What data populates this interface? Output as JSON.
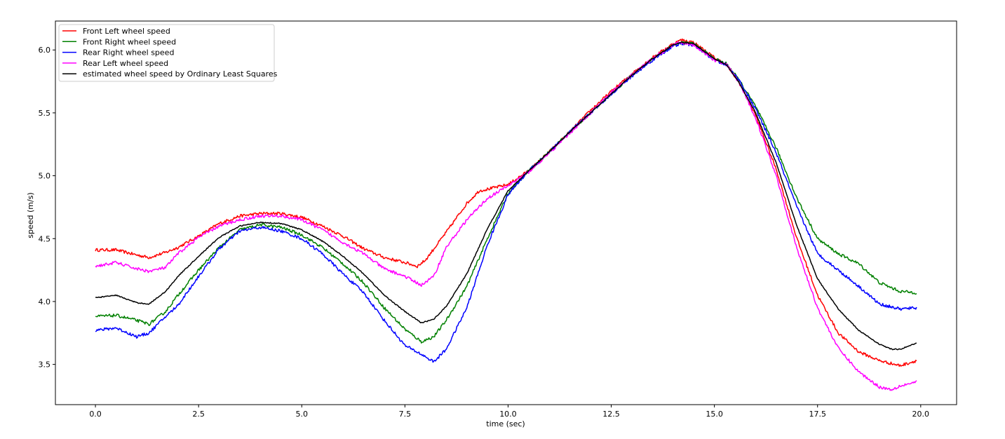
{
  "chart_data": {
    "type": "line",
    "title": "",
    "xlabel": "time (sec)",
    "ylabel": "speed (m/s)",
    "xlim": [
      -0.97,
      20.87
    ],
    "ylim": [
      3.18,
      6.23
    ],
    "xticks": [
      0.0,
      2.5,
      5.0,
      7.5,
      10.0,
      12.5,
      15.0,
      17.5,
      20.0
    ],
    "xtick_labels": [
      "0.0",
      "2.5",
      "5.0",
      "7.5",
      "10.0",
      "12.5",
      "15.0",
      "17.5",
      "20.0"
    ],
    "yticks": [
      3.5,
      4.0,
      4.5,
      5.0,
      5.5,
      6.0
    ],
    "ytick_labels": [
      "3.5",
      "4.0",
      "4.5",
      "5.0",
      "5.5",
      "6.0"
    ],
    "grid": false,
    "legend_position": "upper-left",
    "series": [
      {
        "name": "Front Left wheel speed",
        "color": "#ff0000",
        "noise": 0.012,
        "x": [
          0,
          0.5,
          1.0,
          1.3,
          1.7,
          2.0,
          2.5,
          3.0,
          3.5,
          4.0,
          4.5,
          5.0,
          5.5,
          6.0,
          6.5,
          7.0,
          7.5,
          7.8,
          8.0,
          8.5,
          9.0,
          9.3,
          9.6,
          10.0,
          10.5,
          11.0,
          11.5,
          12.0,
          12.5,
          13.0,
          13.5,
          14.0,
          14.2,
          14.5,
          15.0,
          15.3,
          15.6,
          16.0,
          16.5,
          17.0,
          17.5,
          18.0,
          18.5,
          19.0,
          19.5,
          19.9
        ],
        "y": [
          4.41,
          4.41,
          4.37,
          4.35,
          4.39,
          4.43,
          4.52,
          4.62,
          4.68,
          4.7,
          4.7,
          4.67,
          4.6,
          4.52,
          4.42,
          4.35,
          4.31,
          4.28,
          4.33,
          4.55,
          4.78,
          4.88,
          4.9,
          4.93,
          5.04,
          5.19,
          5.35,
          5.52,
          5.67,
          5.81,
          5.94,
          6.05,
          6.08,
          6.06,
          5.94,
          5.88,
          5.74,
          5.48,
          5.05,
          4.5,
          4.05,
          3.75,
          3.6,
          3.53,
          3.49,
          3.53
        ]
      },
      {
        "name": "Front Right wheel speed",
        "color": "#008000",
        "noise": 0.012,
        "x": [
          0,
          0.5,
          1.0,
          1.3,
          1.7,
          2.0,
          2.5,
          3.0,
          3.5,
          4.0,
          4.5,
          5.0,
          5.5,
          6.0,
          6.5,
          7.0,
          7.5,
          7.9,
          8.2,
          8.5,
          9.0,
          9.5,
          10.0,
          10.5,
          11.0,
          11.5,
          12.0,
          12.5,
          13.0,
          13.5,
          14.0,
          14.2,
          14.5,
          15.0,
          15.3,
          15.6,
          16.0,
          16.5,
          17.0,
          17.5,
          18.0,
          18.5,
          19.0,
          19.5,
          19.9
        ],
        "y": [
          3.88,
          3.89,
          3.85,
          3.82,
          3.92,
          4.05,
          4.25,
          4.43,
          4.57,
          4.61,
          4.59,
          4.53,
          4.43,
          4.3,
          4.15,
          3.95,
          3.78,
          3.68,
          3.72,
          3.85,
          4.12,
          4.5,
          4.86,
          5.04,
          5.19,
          5.35,
          5.5,
          5.65,
          5.8,
          5.93,
          6.04,
          6.06,
          6.05,
          5.93,
          5.89,
          5.76,
          5.55,
          5.22,
          4.82,
          4.5,
          4.38,
          4.3,
          4.15,
          4.08,
          4.07
        ]
      },
      {
        "name": "Rear Right wheel speed",
        "color": "#0000ff",
        "noise": 0.012,
        "x": [
          0,
          0.5,
          1.0,
          1.3,
          1.7,
          2.0,
          2.5,
          3.0,
          3.5,
          4.0,
          4.5,
          5.0,
          5.5,
          6.0,
          6.5,
          7.0,
          7.5,
          7.9,
          8.2,
          8.5,
          9.0,
          9.5,
          10.0,
          10.5,
          11.0,
          11.5,
          12.0,
          12.5,
          13.0,
          13.5,
          14.0,
          14.2,
          14.5,
          15.0,
          15.3,
          15.6,
          16.0,
          16.5,
          17.0,
          17.5,
          18.0,
          18.5,
          19.0,
          19.5,
          19.9
        ],
        "y": [
          3.77,
          3.79,
          3.72,
          3.75,
          3.88,
          3.97,
          4.2,
          4.42,
          4.56,
          4.59,
          4.56,
          4.5,
          4.38,
          4.22,
          4.07,
          3.85,
          3.65,
          3.58,
          3.52,
          3.62,
          3.95,
          4.45,
          4.85,
          5.04,
          5.19,
          5.35,
          5.5,
          5.65,
          5.79,
          5.92,
          6.03,
          6.05,
          6.04,
          5.92,
          5.88,
          5.76,
          5.53,
          5.18,
          4.75,
          4.38,
          4.25,
          4.12,
          3.98,
          3.94,
          3.95
        ]
      },
      {
        "name": "Rear Left wheel speed",
        "color": "#ff00ff",
        "noise": 0.012,
        "x": [
          0,
          0.5,
          1.0,
          1.3,
          1.7,
          2.0,
          2.5,
          3.0,
          3.5,
          4.0,
          4.5,
          5.0,
          5.5,
          6.0,
          6.5,
          7.0,
          7.5,
          7.9,
          8.2,
          8.5,
          9.0,
          9.5,
          10.0,
          10.5,
          11.0,
          11.5,
          12.0,
          12.5,
          13.0,
          13.5,
          14.0,
          14.2,
          14.5,
          15.0,
          15.3,
          15.6,
          16.0,
          16.5,
          17.0,
          17.5,
          18.0,
          18.5,
          19.0,
          19.3,
          19.5,
          19.9
        ],
        "y": [
          4.28,
          4.31,
          4.26,
          4.24,
          4.27,
          4.38,
          4.51,
          4.6,
          4.65,
          4.68,
          4.68,
          4.65,
          4.57,
          4.47,
          4.38,
          4.26,
          4.2,
          4.13,
          4.2,
          4.43,
          4.65,
          4.82,
          4.92,
          5.03,
          5.18,
          5.34,
          5.5,
          5.66,
          5.8,
          5.93,
          6.04,
          6.06,
          6.04,
          5.92,
          5.88,
          5.74,
          5.46,
          5.0,
          4.42,
          3.95,
          3.63,
          3.44,
          3.32,
          3.3,
          3.33,
          3.36
        ]
      },
      {
        "name": "estimated wheel speed by Ordinary Least Squares",
        "color": "#000000",
        "noise": 0.004,
        "x": [
          0,
          0.5,
          1.0,
          1.3,
          1.7,
          2.0,
          2.5,
          3.0,
          3.5,
          4.0,
          4.5,
          5.0,
          5.5,
          6.0,
          6.5,
          7.0,
          7.5,
          7.9,
          8.2,
          8.5,
          9.0,
          9.5,
          10.0,
          10.5,
          11.0,
          11.5,
          12.0,
          12.5,
          13.0,
          13.5,
          14.0,
          14.2,
          14.5,
          15.0,
          15.3,
          15.6,
          16.0,
          16.5,
          17.0,
          17.5,
          18.0,
          18.5,
          19.0,
          19.3,
          19.5,
          19.9
        ],
        "y": [
          4.03,
          4.05,
          3.99,
          3.98,
          4.08,
          4.2,
          4.36,
          4.51,
          4.6,
          4.63,
          4.62,
          4.57,
          4.48,
          4.36,
          4.22,
          4.05,
          3.92,
          3.83,
          3.86,
          3.96,
          4.22,
          4.58,
          4.88,
          5.04,
          5.19,
          5.35,
          5.5,
          5.65,
          5.8,
          5.93,
          6.04,
          6.06,
          6.05,
          5.93,
          5.88,
          5.74,
          5.5,
          5.1,
          4.6,
          4.18,
          3.94,
          3.77,
          3.66,
          3.62,
          3.62,
          3.67
        ]
      }
    ]
  }
}
